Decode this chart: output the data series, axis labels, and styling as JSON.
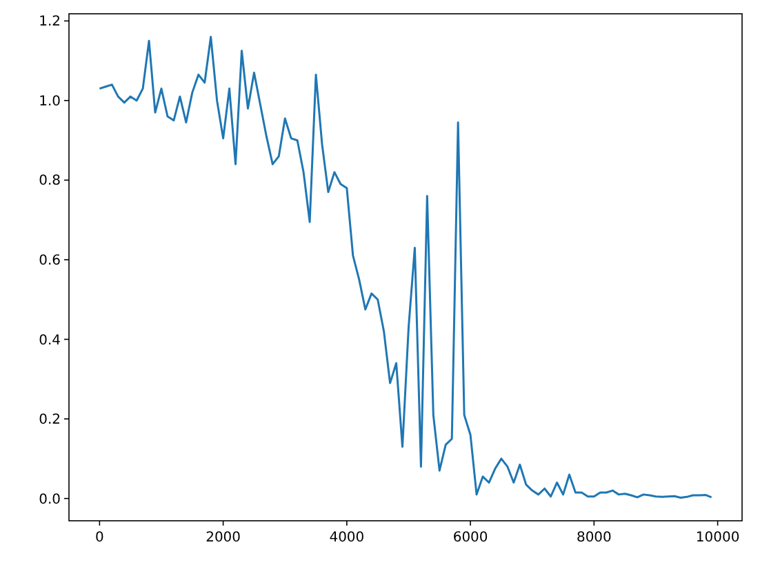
{
  "chart_data": {
    "type": "line",
    "x": [
      0,
      100,
      200,
      300,
      400,
      500,
      600,
      700,
      800,
      900,
      1000,
      1100,
      1200,
      1300,
      1400,
      1500,
      1600,
      1700,
      1800,
      1900,
      2000,
      2100,
      2200,
      2300,
      2400,
      2500,
      2600,
      2700,
      2800,
      2900,
      3000,
      3100,
      3200,
      3300,
      3400,
      3500,
      3600,
      3700,
      3800,
      3900,
      4000,
      4100,
      4200,
      4300,
      4400,
      4500,
      4600,
      4700,
      4800,
      4900,
      5000,
      5100,
      5200,
      5300,
      5400,
      5500,
      5600,
      5700,
      5800,
      5900,
      6000,
      6100,
      6200,
      6300,
      6400,
      6500,
      6600,
      6700,
      6800,
      6900,
      7000,
      7100,
      7200,
      7300,
      7400,
      7500,
      7600,
      7700,
      7800,
      7900,
      8000,
      8100,
      8200,
      8300,
      8400,
      8500,
      8600,
      8700,
      8800,
      8900,
      9000,
      9100,
      9200,
      9300,
      9400,
      9500,
      9600,
      9700,
      9800,
      9900
    ],
    "series": [
      {
        "color": "#1f77b4",
        "values": [
          1.03,
          1.035,
          1.04,
          1.01,
          0.995,
          1.01,
          1.0,
          1.03,
          1.15,
          0.97,
          1.03,
          0.96,
          0.95,
          1.01,
          0.945,
          1.02,
          1.065,
          1.045,
          1.16,
          1.0,
          0.905,
          1.03,
          0.84,
          1.125,
          0.98,
          1.07,
          0.99,
          0.91,
          0.84,
          0.86,
          0.955,
          0.905,
          0.9,
          0.82,
          0.695,
          1.065,
          0.89,
          0.77,
          0.82,
          0.79,
          0.78,
          0.61,
          0.55,
          0.475,
          0.515,
          0.5,
          0.42,
          0.29,
          0.34,
          0.13,
          0.43,
          0.63,
          0.08,
          0.76,
          0.21,
          0.07,
          0.135,
          0.15,
          0.945,
          0.21,
          0.16,
          0.01,
          0.055,
          0.04,
          0.075,
          0.1,
          0.08,
          0.04,
          0.085,
          0.035,
          0.02,
          0.01,
          0.025,
          0.005,
          0.04,
          0.01,
          0.06,
          0.015,
          0.015,
          0.005,
          0.005,
          0.015,
          0.015,
          0.02,
          0.01,
          0.012,
          0.008,
          0.003,
          0.01,
          0.008,
          0.005,
          0.004,
          0.005,
          0.006,
          0.002,
          0.004,
          0.008,
          0.008,
          0.009,
          0.003
        ]
      }
    ],
    "xlim": [
      -495,
      10395
    ],
    "xticks": [
      0,
      2000,
      4000,
      6000,
      8000,
      10000
    ],
    "ylim": [
      -0.056,
      1.218
    ],
    "yticks": [
      {
        "value": 0,
        "label": "0.0"
      },
      {
        "value": 0.2,
        "label": "0.2"
      },
      {
        "value": 0.4,
        "label": "0.4"
      },
      {
        "value": 0.6,
        "label": "0.6"
      },
      {
        "value": 0.8,
        "label": "0.8"
      },
      {
        "value": 1.0,
        "label": "1.0"
      },
      {
        "value": 1.2,
        "label": "1.2"
      }
    ],
    "grid": false
  }
}
